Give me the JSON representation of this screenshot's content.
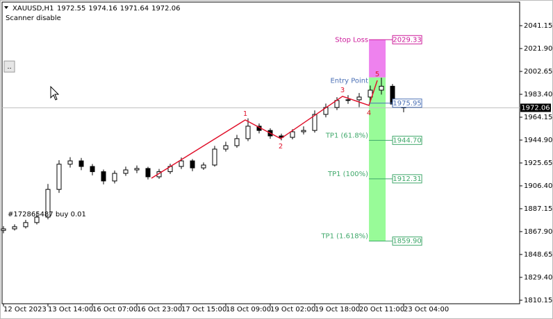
{
  "chart_data": {
    "type": "candlestick",
    "symbol": "XAUUSD,H1",
    "header_ohlc": [
      1972.55,
      1974.16,
      1971.64,
      1972.06
    ],
    "status_text": "Scanner disable",
    "button_text": "..",
    "order_text": "#172865487 buy 0.01",
    "color": "#000000",
    "categories": [
      "12 Oct 2023",
      null,
      null,
      null,
      "13 Oct 14:00",
      null,
      null,
      null,
      "16 Oct 07:00",
      null,
      null,
      null,
      "16 Oct 23:00",
      null,
      null,
      null,
      "17 Oct 15:00",
      null,
      null,
      null,
      "18 Oct 09:00",
      null,
      null,
      null,
      "19 Oct 02:00",
      null,
      null,
      null,
      "19 Oct 18:00",
      null,
      null,
      null,
      "20 Oct 11:00",
      null,
      null,
      null,
      "23 Oct 04:00"
    ],
    "open": [
      1868.9,
      1870.2,
      1872.0,
      1875.5,
      1880.1,
      1903.4,
      1924.6,
      1927.4,
      1922.7,
      1918.3,
      1910.5,
      1916.9,
      1919.8,
      1921.0,
      1914.0,
      1918.3,
      1922.7,
      1927.4,
      1921.5,
      1923.9,
      1937.3,
      1940.2,
      1946.1,
      1956.6,
      1953.0,
      1948.4,
      1947.2,
      1951.9,
      1953.0,
      1966.5,
      1972.3,
      1978.2,
      1978.8,
      1981.1,
      1986.9,
      1990.2,
      1975.2
    ],
    "high": [
      1872.5,
      1874.0,
      1877.8,
      1884.0,
      1908.0,
      1928.0,
      1930.5,
      1929.9,
      1924.8,
      1920.1,
      1919.3,
      1922.6,
      1923.5,
      1922.4,
      1920.6,
      1925.0,
      1930.2,
      1928.9,
      1926.1,
      1940.0,
      1943.5,
      1949.3,
      1963.2,
      1958.9,
      1954.8,
      1950.3,
      1954.1,
      1956.4,
      1969.8,
      1975.6,
      1981.0,
      1982.7,
      1984.5,
      1990.8,
      1997.4,
      1992.1,
      1977.5
    ],
    "low": [
      1866.5,
      1868.8,
      1870.5,
      1873.9,
      1878.2,
      1900.5,
      1921.8,
      1919.6,
      1915.2,
      1907.6,
      1908.4,
      1914.8,
      1917.1,
      1911.8,
      1912.3,
      1916.4,
      1920.5,
      1918.7,
      1919.8,
      1922.6,
      1935.2,
      1938.4,
      1944.0,
      1950.5,
      1946.0,
      1944.7,
      1945.5,
      1949.6,
      1951.2,
      1964.0,
      1970.1,
      1975.4,
      1972.6,
      1977.0,
      1983.2,
      1972.8,
      1968.3
    ],
    "close": [
      1870.2,
      1872.0,
      1875.5,
      1880.1,
      1903.4,
      1924.6,
      1927.4,
      1922.7,
      1918.3,
      1910.5,
      1916.9,
      1919.8,
      1921.0,
      1914.0,
      1918.3,
      1922.7,
      1927.4,
      1921.5,
      1923.9,
      1937.3,
      1940.2,
      1946.1,
      1956.6,
      1953.0,
      1948.4,
      1947.2,
      1951.9,
      1953.0,
      1966.5,
      1972.3,
      1978.2,
      1978.8,
      1981.1,
      1986.9,
      1990.2,
      1975.2,
      1972.06
    ],
    "last_price": 1972.06,
    "ylim": [
      1807.2,
      2061.0
    ],
    "yticks": [
      {
        "value": 2041.15,
        "label": "2041.15"
      },
      {
        "value": 2021.9,
        "label": "2021.90"
      },
      {
        "value": 2002.65,
        "label": "2002.65"
      },
      {
        "value": 1983.4,
        "label": "1983.40"
      },
      {
        "value": 1964.15,
        "label": "1964.15"
      },
      {
        "value": 1944.9,
        "label": "1944.90"
      },
      {
        "value": 1925.65,
        "label": "1925.65"
      },
      {
        "value": 1906.4,
        "label": "1906.40"
      },
      {
        "value": 1887.15,
        "label": "1887.15"
      },
      {
        "value": 1867.9,
        "label": "1867.90"
      },
      {
        "value": 1848.65,
        "label": "1848.65"
      },
      {
        "value": 1829.4,
        "label": "1829.40"
      },
      {
        "value": 1810.15,
        "label": "1810.15"
      }
    ],
    "zigzag": {
      "color": "#e0102a",
      "x": [
        13.31,
        21.75,
        24.94,
        30.5,
        32.88,
        33.63
      ],
      "values": [
        1912.8,
        1961.8,
        1946.1,
        1981.7,
        1974.1,
        1995.1
      ],
      "labels": [
        null,
        "1",
        "2",
        "3",
        "4",
        "5"
      ]
    },
    "zone_split": 1997.6,
    "zone_x": [
      32.88,
      34.38
    ],
    "levels": [
      {
        "name": "Stop Loss",
        "price": 2029.33,
        "price_label": "2029.33",
        "color": "#cc1a9a"
      },
      {
        "name": "Entry Point",
        "price": 1975.95,
        "price_label": "1975.95",
        "color": "#4a6fb5"
      },
      {
        "name": "TP1 (61.8%)",
        "price": 1944.7,
        "price_label": "1944.70",
        "color": "#3fa86a"
      },
      {
        "name": "TP1 (100%)",
        "price": 1912.31,
        "price_label": "1912.31",
        "color": "#3fa86a"
      },
      {
        "name": "TP1 (1.618%)",
        "price": 1859.9,
        "price_label": "1859.90",
        "color": "#3fa86a"
      }
    ]
  }
}
